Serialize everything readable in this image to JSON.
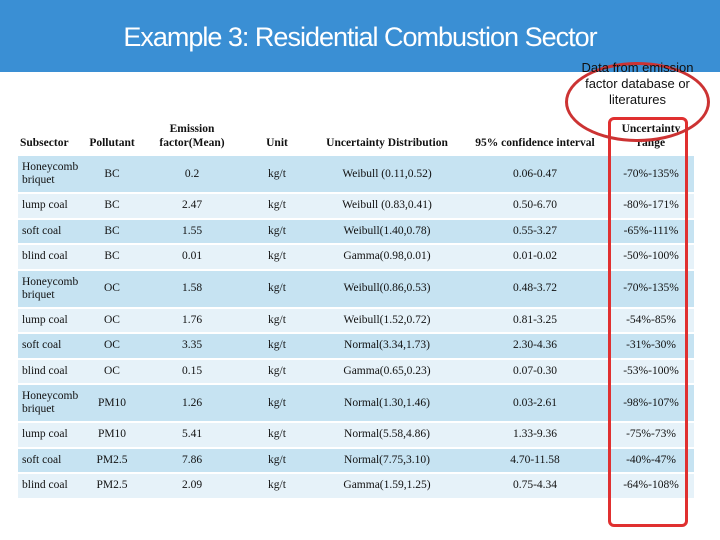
{
  "title": "Example 3:   Residential Combustion Sector",
  "callout": "Data from emission factor database or literatures",
  "headers": [
    "Subsector",
    "Pollutant",
    "Emission factor(Mean)",
    "Unit",
    "Uncertainty Distribution",
    "95% confidence interval",
    "Uncertainty range"
  ],
  "rows": [
    {
      "subsector": "Honeycomb briquet",
      "pollutant": "BC",
      "mean": "0.2",
      "unit": "kg/t",
      "dist": "Weibull   (0.11,0.52)",
      "ci": "0.06-0.47",
      "range": "-70%-135%"
    },
    {
      "subsector": "lump coal",
      "pollutant": "BC",
      "mean": "2.47",
      "unit": "kg/t",
      "dist": "Weibull   (0.83,0.41)",
      "ci": "0.50-6.70",
      "range": "-80%-171%"
    },
    {
      "subsector": "soft coal",
      "pollutant": "BC",
      "mean": "1.55",
      "unit": "kg/t",
      "dist": "Weibull(1.40,0.78)",
      "ci": "0.55-3.27",
      "range": "-65%-111%"
    },
    {
      "subsector": "blind coal",
      "pollutant": "BC",
      "mean": "0.01",
      "unit": "kg/t",
      "dist": "Gamma(0.98,0.01)",
      "ci": "0.01-0.02",
      "range": "-50%-100%"
    },
    {
      "subsector": "Honeycomb briquet",
      "pollutant": "OC",
      "mean": "1.58",
      "unit": "kg/t",
      "dist": "Weibull(0.86,0.53)",
      "ci": "0.48-3.72",
      "range": "-70%-135%"
    },
    {
      "subsector": "lump coal",
      "pollutant": "OC",
      "mean": "1.76",
      "unit": "kg/t",
      "dist": "Weibull(1.52,0.72)",
      "ci": "0.81-3.25",
      "range": "-54%-85%"
    },
    {
      "subsector": "soft coal",
      "pollutant": "OC",
      "mean": "3.35",
      "unit": "kg/t",
      "dist": "Normal(3.34,1.73)",
      "ci": "2.30-4.36",
      "range": "-31%-30%"
    },
    {
      "subsector": "blind coal",
      "pollutant": "OC",
      "mean": "0.15",
      "unit": "kg/t",
      "dist": "Gamma(0.65,0.23)",
      "ci": "0.07-0.30",
      "range": "-53%-100%"
    },
    {
      "subsector": "Honeycomb briquet",
      "pollutant": "PM10",
      "mean": "1.26",
      "unit": "kg/t",
      "dist": "Normal(1.30,1.46)",
      "ci": "0.03-2.61",
      "range": "-98%-107%"
    },
    {
      "subsector": "lump coal",
      "pollutant": "PM10",
      "mean": "5.41",
      "unit": "kg/t",
      "dist": "Normal(5.58,4.86)",
      "ci": "1.33-9.36",
      "range": "-75%-73%"
    },
    {
      "subsector": "soft coal",
      "pollutant": "PM2.5",
      "mean": "7.86",
      "unit": "kg/t",
      "dist": "Normal(7.75,3.10)",
      "ci": "4.70-11.58",
      "range": "-40%-47%"
    },
    {
      "subsector": "blind coal",
      "pollutant": "PM2.5",
      "mean": "2.09",
      "unit": "kg/t",
      "dist": "Gamma(1.59,1.25)",
      "ci": "0.75-4.34",
      "range": "-64%-108%"
    }
  ]
}
